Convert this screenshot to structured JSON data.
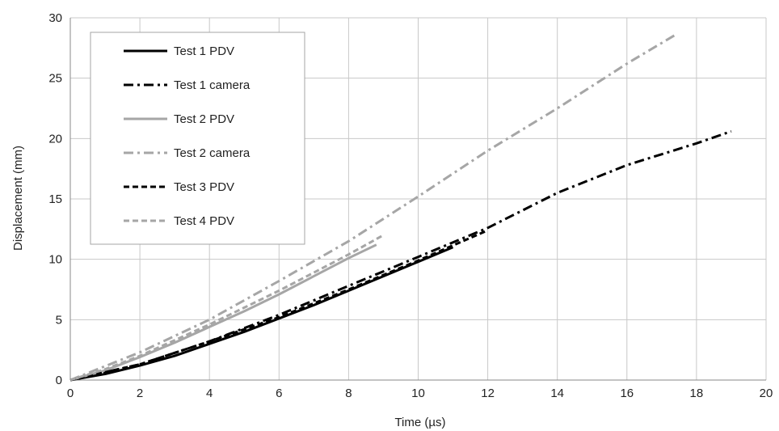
{
  "chart_data": {
    "type": "line",
    "xlabel": "Time (µs)",
    "ylabel": "Displacement (mm)",
    "xlim": [
      0,
      20
    ],
    "ylim": [
      0,
      30
    ],
    "x_ticks": [
      "0",
      "2",
      "4",
      "6",
      "8",
      "10",
      "12",
      "14",
      "16",
      "18",
      "20"
    ],
    "y_ticks": [
      "0",
      "5",
      "10",
      "15",
      "20",
      "25",
      "30"
    ],
    "grid": true,
    "legend_position": "top-left",
    "series": [
      {
        "name": "Test 1 PDV",
        "color": "#000000",
        "style": "solid",
        "points": [
          [
            0,
            0
          ],
          [
            1,
            0.5
          ],
          [
            2,
            1.2
          ],
          [
            3,
            2.0
          ],
          [
            4,
            3.0
          ],
          [
            5,
            4.0
          ],
          [
            6,
            5.1
          ],
          [
            7,
            6.2
          ],
          [
            8,
            7.4
          ],
          [
            9,
            8.6
          ],
          [
            10,
            9.8
          ],
          [
            11,
            11.0
          ]
        ]
      },
      {
        "name": "Test 1 camera",
        "color": "#000000",
        "style": "dashdot",
        "points": [
          [
            0,
            0
          ],
          [
            2,
            1.3
          ],
          [
            4,
            3.2
          ],
          [
            6,
            5.4
          ],
          [
            8,
            7.8
          ],
          [
            10,
            10.2
          ],
          [
            12,
            12.6
          ],
          [
            14,
            15.5
          ],
          [
            16,
            17.8
          ],
          [
            18,
            19.6
          ],
          [
            19,
            20.6
          ]
        ]
      },
      {
        "name": "Test 2 PDV",
        "color": "#a6a6a6",
        "style": "solid",
        "points": [
          [
            0,
            0
          ],
          [
            1,
            0.8
          ],
          [
            2,
            1.9
          ],
          [
            3,
            3.1
          ],
          [
            4,
            4.4
          ],
          [
            5,
            5.7
          ],
          [
            6,
            7.1
          ],
          [
            7,
            8.6
          ],
          [
            8,
            10.1
          ],
          [
            8.8,
            11.2
          ]
        ]
      },
      {
        "name": "Test 2 camera",
        "color": "#a6a6a6",
        "style": "dashdot",
        "points": [
          [
            0,
            0
          ],
          [
            2,
            2.3
          ],
          [
            4,
            5.0
          ],
          [
            6,
            8.2
          ],
          [
            8,
            11.5
          ],
          [
            10,
            15.2
          ],
          [
            12,
            19.0
          ],
          [
            14,
            22.5
          ],
          [
            16,
            26.2
          ],
          [
            17.4,
            28.6
          ]
        ]
      },
      {
        "name": "Test 3 PDV",
        "color": "#000000",
        "style": "dashed",
        "points": [
          [
            0,
            0
          ],
          [
            2,
            1.3
          ],
          [
            4,
            3.2
          ],
          [
            6,
            5.2
          ],
          [
            8,
            7.5
          ],
          [
            10,
            9.9
          ],
          [
            12,
            12.4
          ]
        ]
      },
      {
        "name": "Test 4 PDV",
        "color": "#a6a6a6",
        "style": "dashed",
        "points": [
          [
            0,
            0
          ],
          [
            1,
            0.9
          ],
          [
            2,
            2.0
          ],
          [
            3,
            3.3
          ],
          [
            4,
            4.6
          ],
          [
            5,
            6.0
          ],
          [
            6,
            7.4
          ],
          [
            7,
            8.9
          ],
          [
            8,
            10.4
          ],
          [
            9,
            12.0
          ]
        ]
      }
    ]
  }
}
